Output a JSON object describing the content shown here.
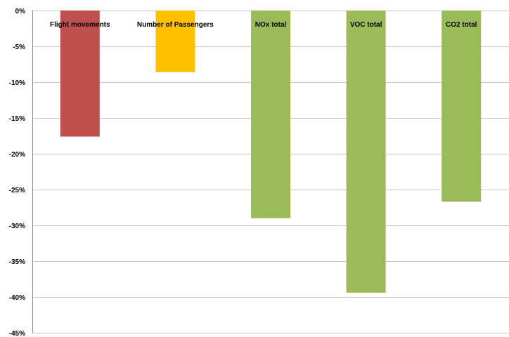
{
  "chart_data": {
    "type": "bar",
    "title": "",
    "xlabel": "",
    "ylabel": "",
    "categories": [
      "Flight movements",
      "Number of Passengers",
      "NOx total",
      "VOC total",
      "CO2 total"
    ],
    "values": [
      -17.6,
      -8.6,
      -29.0,
      -39.4,
      -26.7
    ],
    "bar_colors": [
      "#c0504d",
      "#ffc000",
      "#9bbb59",
      "#9bbb59",
      "#9bbb59"
    ],
    "ylim": [
      -45,
      0
    ],
    "yticks": [
      0,
      -5,
      -10,
      -15,
      -20,
      -25,
      -30,
      -35,
      -40,
      -45
    ],
    "ytick_labels": [
      "0%",
      "-5%",
      "-10%",
      "-15%",
      "-20%",
      "-25%",
      "-30%",
      "-35%",
      "-40%",
      "-45%"
    ],
    "grid": true,
    "legend": "none"
  }
}
